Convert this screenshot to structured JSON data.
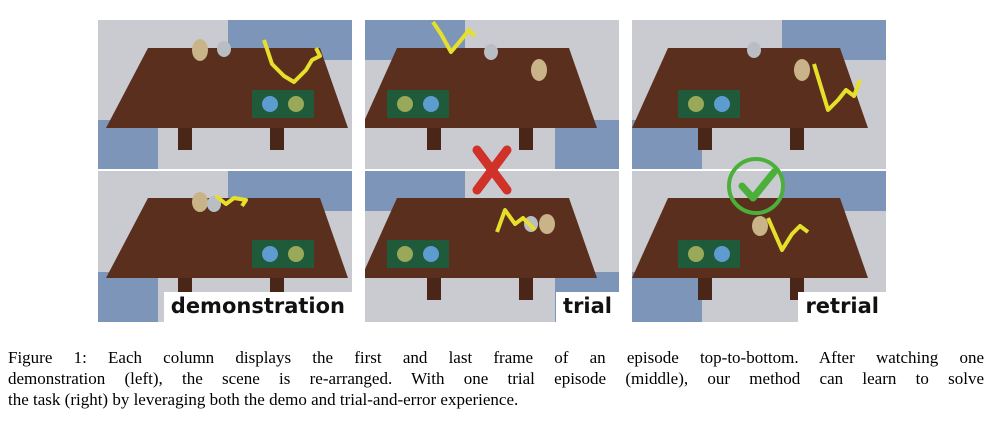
{
  "figure": {
    "panels": [
      {
        "id": "demonstration",
        "label": "demonstration",
        "marker": ""
      },
      {
        "id": "trial",
        "label": "trial",
        "marker": "cross-mark-icon"
      },
      {
        "id": "retrial",
        "label": "retrial",
        "marker": "check-mark-icon"
      }
    ]
  },
  "caption": {
    "prefix": "Figure 1:",
    "line1": "Each column displays the first and last frame of an episode top-to-bottom.  After watching one",
    "line2": "demonstration (left), the scene is re-arranged. With one trial episode (middle), our method can learn to solve",
    "line3": "the task (right) by leveraging both the demo and trial-and-error experience."
  },
  "colors": {
    "table": "#5a2f1e",
    "floor_light": "#c9cbd0",
    "floor_blue": "#7d95b8",
    "robot_arm": "#e6e02a",
    "tray": "#1f5a3a",
    "cross": "#d0322a",
    "check": "#4caf3a"
  }
}
